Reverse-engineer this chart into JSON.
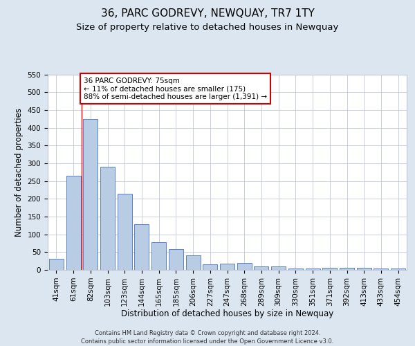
{
  "title": "36, PARC GODREVY, NEWQUAY, TR7 1TY",
  "subtitle": "Size of property relative to detached houses in Newquay",
  "xlabel": "Distribution of detached houses by size in Newquay",
  "ylabel": "Number of detached properties",
  "categories": [
    "41sqm",
    "61sqm",
    "82sqm",
    "103sqm",
    "123sqm",
    "144sqm",
    "165sqm",
    "185sqm",
    "206sqm",
    "227sqm",
    "247sqm",
    "268sqm",
    "289sqm",
    "309sqm",
    "330sqm",
    "351sqm",
    "371sqm",
    "392sqm",
    "413sqm",
    "433sqm",
    "454sqm"
  ],
  "values": [
    32,
    265,
    425,
    290,
    215,
    128,
    77,
    59,
    40,
    15,
    18,
    20,
    10,
    10,
    3,
    3,
    5,
    5,
    5,
    4,
    3
  ],
  "bar_color": "#b8cce4",
  "bar_edge_color": "#4472c4",
  "background_color": "#dce6f1",
  "plot_bg_color": "#ffffff",
  "grid_color": "#c0c8d8",
  "ylim": [
    0,
    550
  ],
  "yticks": [
    0,
    50,
    100,
    150,
    200,
    250,
    300,
    350,
    400,
    450,
    500,
    550
  ],
  "red_line_x": 1.5,
  "annotation_text": "36 PARC GODREVY: 75sqm\n← 11% of detached houses are smaller (175)\n88% of semi-detached houses are larger (1,391) →",
  "annotation_box_color": "#ffffff",
  "annotation_box_edge": "#cc0000",
  "title_fontsize": 11,
  "subtitle_fontsize": 9.5,
  "axis_label_fontsize": 8.5,
  "tick_fontsize": 7.5,
  "annotation_fontsize": 7.5,
  "footer_fontsize": 6.0,
  "footer_line1": "Contains HM Land Registry data © Crown copyright and database right 2024.",
  "footer_line2": "Contains public sector information licensed under the Open Government Licence v3.0."
}
